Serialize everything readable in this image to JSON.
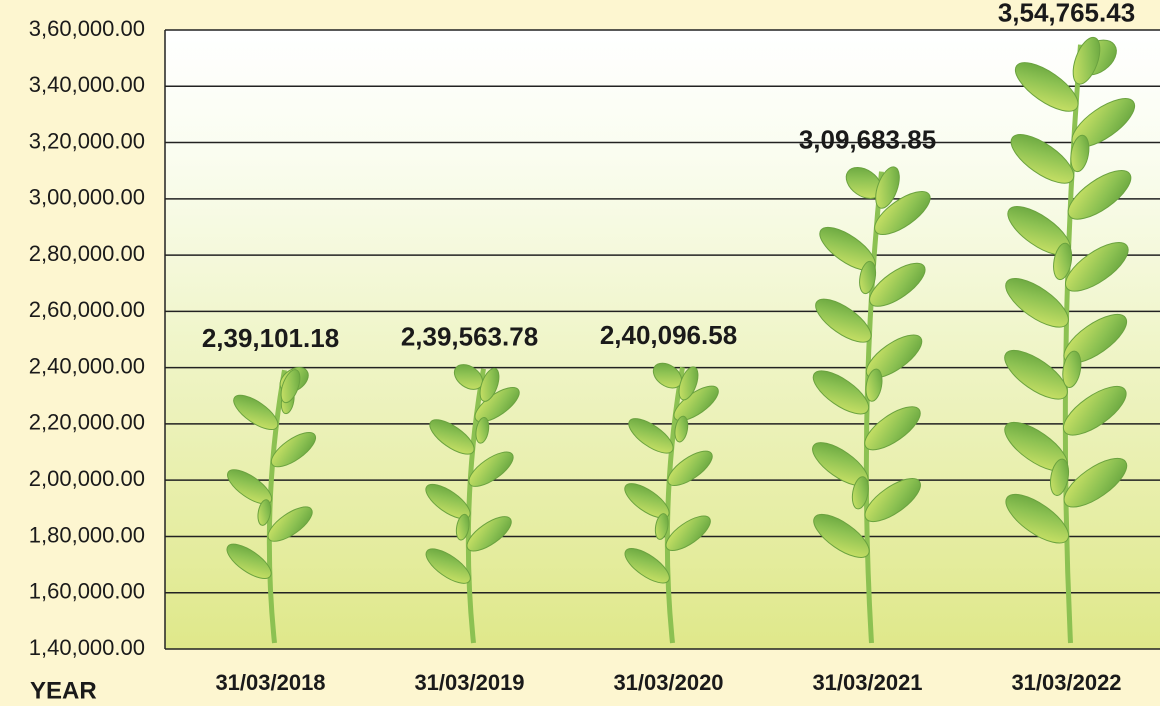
{
  "chart_data": {
    "type": "pictorial-bar",
    "x_label": "YEAR",
    "categories": [
      "31/03/2018",
      "31/03/2019",
      "31/03/2020",
      "31/03/2021",
      "31/03/2022"
    ],
    "values": [
      239101.18,
      239563.78,
      240096.58,
      309683.85,
      354765.43
    ],
    "value_labels": [
      "2,39,101.18",
      "2,39,563.78",
      "2,40,096.58",
      "3,09,683.85",
      "3,54,765.43"
    ],
    "color": "#7cb342",
    "ylim": [
      140000,
      360000
    ],
    "yticks": [
      {
        "value": 140000,
        "label": "1,40,000.00"
      },
      {
        "value": 160000,
        "label": "1,60,000.00"
      },
      {
        "value": 180000,
        "label": "1,80,000.00"
      },
      {
        "value": 200000,
        "label": "2,00,000.00"
      },
      {
        "value": 220000,
        "label": "2,20,000.00"
      },
      {
        "value": 240000,
        "label": "2,40,000.00"
      },
      {
        "value": 260000,
        "label": "2,60,000.00"
      },
      {
        "value": 280000,
        "label": "2,80,000.00"
      },
      {
        "value": 300000,
        "label": "3,00,000.00"
      },
      {
        "value": 320000,
        "label": "3,20,000.00"
      },
      {
        "value": 340000,
        "label": "3,40,000.00"
      },
      {
        "value": 360000,
        "label": "3,60,000.00"
      }
    ],
    "grid": true
  }
}
